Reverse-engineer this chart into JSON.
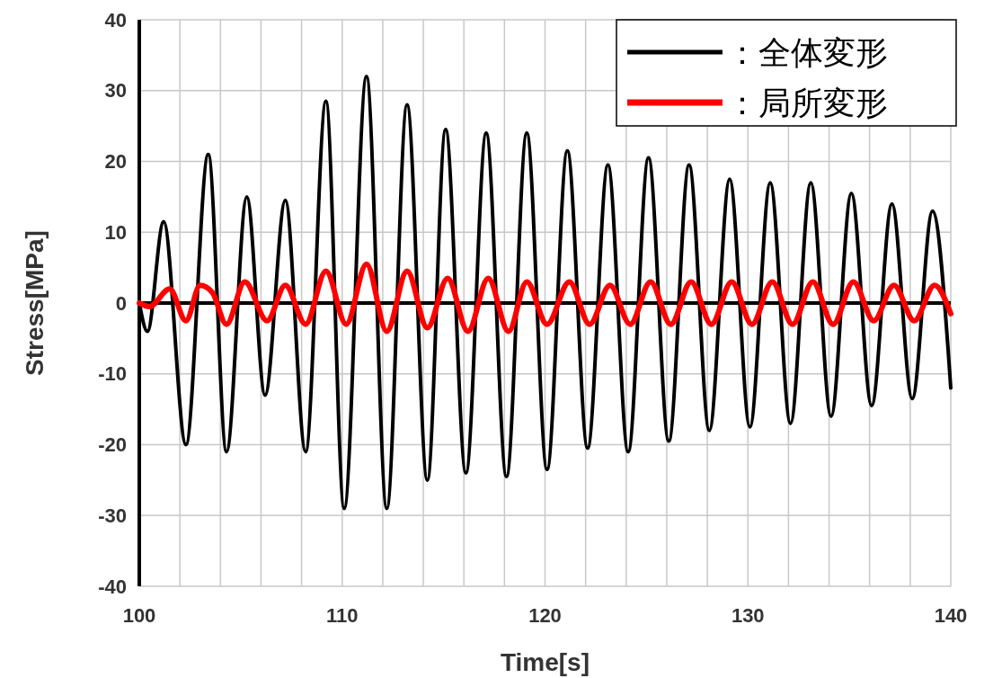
{
  "chart_data": {
    "type": "line",
    "xlabel": "Time[s]",
    "ylabel": "Stress[MPa]",
    "xlim": [
      100,
      140
    ],
    "ylim": [
      -40,
      40
    ],
    "xticks": [
      100,
      {
        "value": 102,
        "label": null
      },
      {
        "value": 104,
        "label": null
      },
      {
        "value": 106,
        "label": null
      },
      {
        "value": 108,
        "label": null
      },
      110,
      {
        "value": 112,
        "label": null
      },
      {
        "value": 114,
        "label": null
      },
      {
        "value": 116,
        "label": null
      },
      {
        "value": 118,
        "label": null
      },
      120,
      {
        "value": 122,
        "label": null
      },
      {
        "value": 124,
        "label": null
      },
      {
        "value": 126,
        "label": null
      },
      {
        "value": 128,
        "label": null
      },
      130,
      {
        "value": 132,
        "label": null
      },
      {
        "value": 134,
        "label": null
      },
      {
        "value": 136,
        "label": null
      },
      {
        "value": 138,
        "label": null
      },
      140
    ],
    "yticks": [
      -40,
      -30,
      -20,
      -10,
      0,
      10,
      20,
      30,
      40
    ],
    "grid": true,
    "legend": "top right",
    "marker": "none",
    "line_style": "solid",
    "series": [
      {
        "name": "：全体変形",
        "color": "#000000",
        "x": [
          100,
          100.4,
          101.2,
          102.3,
          103.4,
          104.3,
          105.3,
          106.2,
          107.2,
          108.2,
          109.2,
          110.1,
          111.2,
          112.2,
          113.2,
          114.2,
          115.1,
          116.1,
          117.1,
          118.1,
          119.1,
          120.1,
          121.1,
          122.1,
          123.1,
          124.1,
          125.1,
          126.1,
          127.1,
          128.1,
          129.1,
          130.1,
          131.1,
          132.1,
          133.1,
          134.1,
          135.1,
          136.1,
          137.1,
          138.1,
          139.1,
          140
        ],
        "values": [
          0,
          -4,
          11.5,
          -20,
          21,
          -21,
          15,
          -13,
          14.5,
          -21,
          28.5,
          -29,
          32,
          -29,
          28,
          -25,
          24.5,
          -24,
          24,
          -24.5,
          24,
          -23.5,
          21.5,
          -20.5,
          19.5,
          -21,
          20.5,
          -19.5,
          19.5,
          -18,
          17.5,
          -17.5,
          17,
          -17,
          17,
          -16,
          15.5,
          -14.5,
          14,
          -13.5,
          13,
          -12
        ]
      },
      {
        "name": "：局所変形",
        "color": "#ff0000",
        "x": [
          100,
          100.5,
          101.5,
          102.3,
          103,
          103.6,
          104.3,
          105.2,
          106.3,
          107.2,
          108.2,
          109.2,
          110.2,
          111.2,
          112.2,
          113.2,
          114.2,
          115.2,
          116.2,
          117.2,
          118.2,
          119.1,
          120.1,
          121.2,
          122.2,
          123.2,
          124.2,
          125.2,
          126.2,
          127.2,
          128.2,
          129.2,
          130.2,
          131.2,
          132.2,
          133.2,
          134.2,
          135.2,
          136.2,
          137.2,
          138.2,
          139.2,
          140
        ],
        "values": [
          0,
          -0.5,
          2,
          -2.5,
          2.5,
          1.5,
          -3,
          3,
          -2.5,
          2.5,
          -3,
          4.5,
          -3,
          5.5,
          -4,
          4.5,
          -3.5,
          3.5,
          -4,
          3.5,
          -4,
          3,
          -3,
          3,
          -3,
          2.5,
          -3,
          3,
          -3,
          3,
          -3,
          3,
          -3,
          3,
          -3,
          3,
          -3,
          3,
          -2.5,
          2.5,
          -2.5,
          2.5,
          -1.5
        ]
      }
    ]
  }
}
